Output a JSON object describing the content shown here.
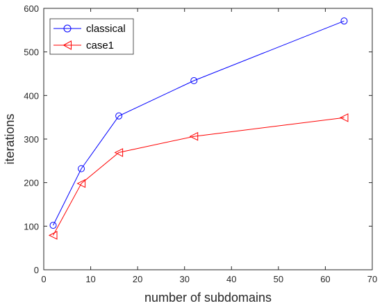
{
  "chart_data": {
    "type": "line",
    "title": "",
    "xlabel": "number of subdomains",
    "ylabel": "iterations",
    "xlim": [
      0,
      70
    ],
    "ylim": [
      0,
      600
    ],
    "xticks": [
      "0",
      "10",
      "20",
      "30",
      "40",
      "50",
      "60",
      "70"
    ],
    "yticks": [
      "0",
      "100",
      "200",
      "300",
      "400",
      "500",
      "600"
    ],
    "grid": false,
    "legend_position": "top-left",
    "x": [
      2,
      8,
      16,
      32,
      64
    ],
    "series": [
      {
        "name": "classical",
        "values": [
          102,
          232,
          353,
          434,
          571
        ],
        "color": "#0000ff",
        "marker": "circle"
      },
      {
        "name": "case1",
        "values": [
          79,
          198,
          269,
          306,
          349
        ],
        "color": "#ff0000",
        "marker": "triangle-left"
      }
    ]
  }
}
